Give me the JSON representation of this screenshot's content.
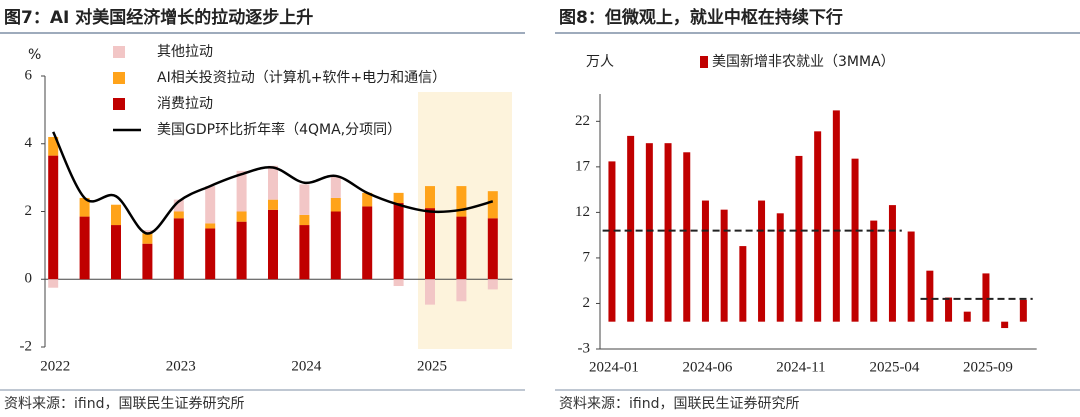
{
  "chart_data": [
    {
      "type": "bar",
      "stacked": true,
      "title": "图7：AI 对美国经济增长的拉动逐步上升",
      "y_label": "%",
      "source": "资料来源：ifind，国联民生证券研究所",
      "categories": [
        "2022",
        null,
        null,
        null,
        "2023",
        null,
        null,
        null,
        "2024",
        null,
        null,
        null,
        "2025",
        null,
        null
      ],
      "series": [
        {
          "name": "其他拉动",
          "color": "#f2c6c6",
          "values": [
            -0.25,
            0,
            0,
            0.1,
            0.35,
            1.1,
            1.2,
            1.0,
            0.9,
            0.65,
            0,
            -0.2,
            -0.75,
            -0.65,
            -0.3
          ]
        },
        {
          "name": "AI相关投资拉动（计算机+软件+电力和通信）",
          "color": "#ffa31a",
          "values": [
            0.55,
            0.55,
            0.6,
            0.3,
            0.2,
            0.15,
            0.3,
            0.3,
            0.3,
            0.4,
            0.4,
            0.3,
            0.65,
            0.9,
            0.8
          ]
        },
        {
          "name": "消费拉动",
          "color": "#c00000",
          "values": [
            3.65,
            1.85,
            1.6,
            1.05,
            1.8,
            1.5,
            1.7,
            2.05,
            1.6,
            2.0,
            2.15,
            2.25,
            2.1,
            1.85,
            1.8
          ]
        },
        {
          "name": "美国GDP环比折年率（4QMA,分项同）",
          "type": "line",
          "color": "#000000",
          "values": [
            4.35,
            2.4,
            2.45,
            1.35,
            2.3,
            2.75,
            3.1,
            3.3,
            2.85,
            3.05,
            2.55,
            2.2,
            2.0,
            2.05,
            2.3
          ]
        }
      ],
      "ylim": [
        -2,
        6
      ],
      "yticks": [
        -2,
        0,
        2,
        4,
        6
      ]
    },
    {
      "type": "bar",
      "title": "图8：但微观上，就业中枢在持续下行",
      "y_label": "万人",
      "source": "资料来源：ifind，国联民生证券研究所",
      "categories": [
        "2024-01",
        null,
        null,
        null,
        null,
        "2024-06",
        null,
        null,
        null,
        null,
        "2024-11",
        null,
        null,
        null,
        null,
        "2025-04",
        null,
        null,
        null,
        null,
        "2025-09",
        null,
        null
      ],
      "series": [
        {
          "name": "美国新增非农就业（3MMA）",
          "color": "#c00000",
          "values": [
            17.6,
            20.4,
            19.6,
            19.6,
            18.6,
            13.3,
            12.3,
            8.3,
            13.3,
            11.9,
            18.2,
            20.9,
            23.2,
            17.9,
            11.1,
            12.8,
            9.9,
            5.6,
            2.65,
            1.1,
            5.3,
            -0.7,
            2.4
          ]
        }
      ],
      "dashed": {
        "color": "#222222",
        "values": [
          10,
          10,
          10,
          10,
          10,
          10,
          10,
          10,
          10,
          10,
          10,
          10,
          10,
          10,
          10,
          10,
          null,
          2.5,
          2.5,
          2.5,
          2.5,
          2.5,
          2.5
        ]
      },
      "ylim": [
        -3,
        25
      ],
      "yticks": [
        -3,
        2,
        7,
        12,
        17,
        22
      ]
    }
  ]
}
